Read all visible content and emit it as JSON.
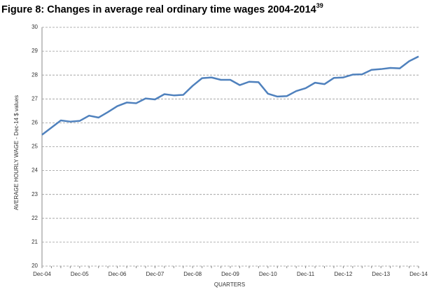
{
  "chart_data": {
    "type": "line",
    "title": "Figure 8:  Changes in average real ordinary time wages 2004-2014",
    "title_superscript": "39",
    "x_label": "QUARTERS",
    "y_label": "AVERAGE HOURLY WAGE - Dec-14 $ values",
    "categories": [
      "Dec-04",
      null,
      null,
      null,
      "Dec-05",
      null,
      null,
      null,
      "Dec-06",
      null,
      null,
      null,
      "Dec-07",
      null,
      null,
      null,
      "Dec-08",
      null,
      null,
      null,
      "Dec-09",
      null,
      null,
      null,
      "Dec-10",
      null,
      null,
      null,
      "Dec-11",
      null,
      null,
      null,
      "Dec-12",
      null,
      null,
      null,
      "Dec-13",
      null,
      null,
      null,
      "Dec-14"
    ],
    "series": [
      {
        "name": "Average hourly wage",
        "color": "#4f81bd",
        "values": [
          25.5,
          25.8,
          26.1,
          26.05,
          26.08,
          26.3,
          26.22,
          26.45,
          26.7,
          26.85,
          26.82,
          27.02,
          26.98,
          27.2,
          27.15,
          27.17,
          27.55,
          27.87,
          27.9,
          27.8,
          27.8,
          27.58,
          27.72,
          27.7,
          27.22,
          27.1,
          27.12,
          27.33,
          27.45,
          27.68,
          27.62,
          27.88,
          27.9,
          28.02,
          28.03,
          28.22,
          28.25,
          28.3,
          28.28,
          28.58,
          28.78
        ]
      }
    ],
    "ylim": [
      20,
      30
    ],
    "yticks": [
      20,
      21,
      22,
      23,
      24,
      25,
      26,
      27,
      28,
      29,
      30
    ],
    "grid": true
  }
}
